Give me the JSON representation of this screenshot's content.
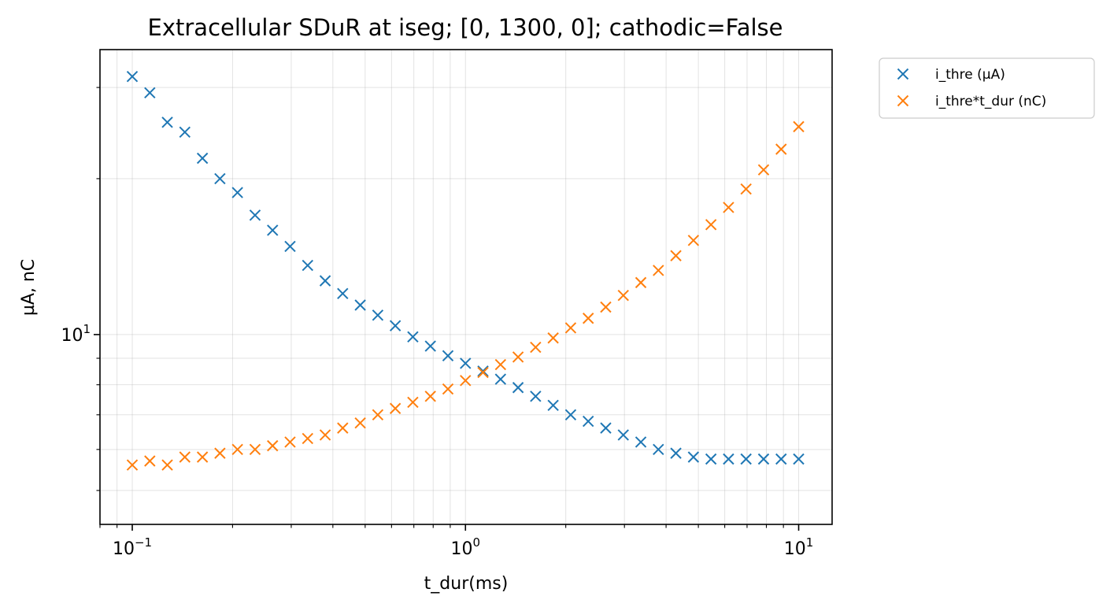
{
  "chart_data": {
    "type": "scatter",
    "title": "Extracellular SDuR at iseg; [0, 1300, 0]; cathodic=False",
    "xlabel": "t_dur(ms)",
    "ylabel": "µA, nC",
    "xscale": "log",
    "yscale": "log",
    "xlim": [
      0.08,
      12.6
    ],
    "ylim": [
      4.3,
      35.5
    ],
    "grid": "both",
    "legend_position": "outside-top-right",
    "x_ticks": [
      {
        "base": "10",
        "exp": "−1",
        "value": 0.1
      },
      {
        "base": "10",
        "exp": "0",
        "value": 1
      },
      {
        "base": "10",
        "exp": "1",
        "value": 10
      }
    ],
    "y_ticks": [
      {
        "base": "10",
        "exp": "1",
        "value": 10
      }
    ],
    "x": [
      0.1,
      0.1129,
      0.1274,
      0.1438,
      0.1624,
      0.1833,
      0.2069,
      0.2336,
      0.2637,
      0.2976,
      0.336,
      0.3793,
      0.4281,
      0.4833,
      0.5456,
      0.6158,
      0.6952,
      0.7848,
      0.8859,
      1.0,
      1.1288,
      1.2743,
      1.4384,
      1.6238,
      1.833,
      2.0691,
      2.3357,
      2.6367,
      2.9764,
      3.3598,
      3.7927,
      4.2813,
      4.8329,
      5.4556,
      6.1585,
      6.9519,
      7.8476,
      8.8587,
      10.0
    ],
    "series": [
      {
        "name": "i_thre (µA)",
        "color": "#1f77b4",
        "marker": "x",
        "values": [
          31.5,
          29.3,
          25.7,
          24.6,
          21.9,
          20.0,
          18.8,
          17.0,
          15.9,
          14.8,
          13.6,
          12.7,
          12.0,
          11.4,
          10.9,
          10.4,
          9.9,
          9.5,
          9.1,
          8.8,
          8.5,
          8.2,
          7.9,
          7.6,
          7.3,
          7.0,
          6.8,
          6.6,
          6.4,
          6.2,
          6.0,
          5.9,
          5.8,
          5.75,
          5.75,
          5.75,
          5.75,
          5.75,
          5.75
        ]
      },
      {
        "name": "i_thre*t_dur (nC)",
        "color": "#ff7f0e",
        "marker": "x",
        "values": [
          5.6,
          5.7,
          5.6,
          5.8,
          5.8,
          5.9,
          6.0,
          6.0,
          6.1,
          6.2,
          6.3,
          6.4,
          6.6,
          6.75,
          7.0,
          7.2,
          7.4,
          7.6,
          7.85,
          8.15,
          8.45,
          8.75,
          9.05,
          9.45,
          9.85,
          10.3,
          10.75,
          11.3,
          11.9,
          12.6,
          13.3,
          14.2,
          15.2,
          16.3,
          17.6,
          19.1,
          20.8,
          22.8,
          25.2
        ]
      }
    ]
  }
}
